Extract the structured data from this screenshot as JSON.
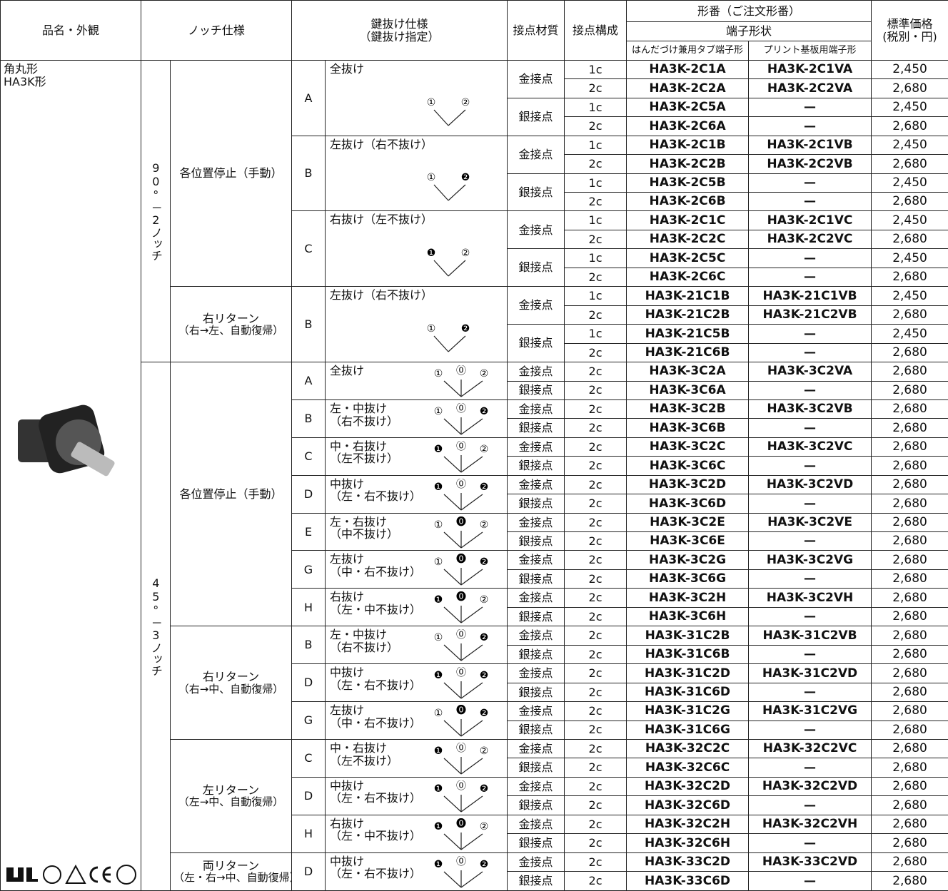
{
  "header": {
    "product": "品名・外観",
    "notch": "ノッチ仕様",
    "key": [
      "鍵抜け仕様",
      "（鍵抜け指定）"
    ],
    "material": "接点材質",
    "config": "接点構成",
    "model": "形番（ご注文形番）",
    "terminal": "端子形状",
    "tab": "はんだづけ兼用タブ端子形",
    "pcb": "プリント基板用端子形",
    "price": [
      "標準価格",
      "(税別・円)"
    ]
  },
  "product": [
    "角丸形",
    "HA3K形"
  ],
  "sections": [
    {
      "angle": "90°－2ノッチ",
      "groups": [
        {
          "notch": [
            "各位置停止（手動）"
          ],
          "keys": [
            {
              "letter": "A",
              "spec": [
                "全抜け"
              ],
              "positions": [
                "①",
                "②"
              ],
              "materials": [
                {
                  "name": "金接点",
                  "rows": [
                    [
                      "1c",
                      "HA3K-2C1A",
                      "HA3K-2C1VA",
                      "2,450"
                    ],
                    [
                      "2c",
                      "HA3K-2C2A",
                      "HA3K-2C2VA",
                      "2,680"
                    ]
                  ]
                },
                {
                  "name": "銀接点",
                  "rows": [
                    [
                      "1c",
                      "HA3K-2C5A",
                      "—",
                      "2,450"
                    ],
                    [
                      "2c",
                      "HA3K-2C6A",
                      "—",
                      "2,680"
                    ]
                  ]
                }
              ]
            },
            {
              "letter": "B",
              "spec": [
                "左抜け（右不抜け）"
              ],
              "positions": [
                "①",
                "❷"
              ],
              "materials": [
                {
                  "name": "金接点",
                  "rows": [
                    [
                      "1c",
                      "HA3K-2C1B",
                      "HA3K-2C1VB",
                      "2,450"
                    ],
                    [
                      "2c",
                      "HA3K-2C2B",
                      "HA3K-2C2VB",
                      "2,680"
                    ]
                  ]
                },
                {
                  "name": "銀接点",
                  "rows": [
                    [
                      "1c",
                      "HA3K-2C5B",
                      "—",
                      "2,450"
                    ],
                    [
                      "2c",
                      "HA3K-2C6B",
                      "—",
                      "2,680"
                    ]
                  ]
                }
              ]
            },
            {
              "letter": "C",
              "spec": [
                "右抜け（左不抜け）"
              ],
              "positions": [
                "❶",
                "②"
              ],
              "materials": [
                {
                  "name": "金接点",
                  "rows": [
                    [
                      "1c",
                      "HA3K-2C1C",
                      "HA3K-2C1VC",
                      "2,450"
                    ],
                    [
                      "2c",
                      "HA3K-2C2C",
                      "HA3K-2C2VC",
                      "2,680"
                    ]
                  ]
                },
                {
                  "name": "銀接点",
                  "rows": [
                    [
                      "1c",
                      "HA3K-2C5C",
                      "—",
                      "2,450"
                    ],
                    [
                      "2c",
                      "HA3K-2C6C",
                      "—",
                      "2,680"
                    ]
                  ]
                }
              ]
            }
          ]
        },
        {
          "notch": [
            "右リターン",
            "（右→左、自動復帰）"
          ],
          "keys": [
            {
              "letter": "B",
              "spec": [
                "左抜け（右不抜け）"
              ],
              "positions": [
                "①",
                "❷"
              ],
              "materials": [
                {
                  "name": "金接点",
                  "rows": [
                    [
                      "1c",
                      "HA3K-21C1B",
                      "HA3K-21C1VB",
                      "2,450"
                    ],
                    [
                      "2c",
                      "HA3K-21C2B",
                      "HA3K-21C2VB",
                      "2,680"
                    ]
                  ]
                },
                {
                  "name": "銀接点",
                  "rows": [
                    [
                      "1c",
                      "HA3K-21C5B",
                      "—",
                      "2,450"
                    ],
                    [
                      "2c",
                      "HA3K-21C6B",
                      "—",
                      "2,680"
                    ]
                  ]
                }
              ]
            }
          ]
        }
      ]
    },
    {
      "angle": "45°－3ノッチ",
      "groups": [
        {
          "notch": [
            "各位置停止（手動）"
          ],
          "keys": [
            {
              "letter": "A",
              "spec": [
                "全抜け"
              ],
              "positions": [
                "①",
                "⓪",
                "②"
              ],
              "materials": [
                {
                  "name": "金接点",
                  "rows": [
                    [
                      "2c",
                      "HA3K-3C2A",
                      "HA3K-3C2VA",
                      "2,680"
                    ]
                  ]
                },
                {
                  "name": "銀接点",
                  "rows": [
                    [
                      "2c",
                      "HA3K-3C6A",
                      "—",
                      "2,680"
                    ]
                  ]
                }
              ]
            },
            {
              "letter": "B",
              "spec": [
                "左・中抜け",
                "（右不抜け）"
              ],
              "positions": [
                "①",
                "⓪",
                "❷"
              ],
              "materials": [
                {
                  "name": "金接点",
                  "rows": [
                    [
                      "2c",
                      "HA3K-3C2B",
                      "HA3K-3C2VB",
                      "2,680"
                    ]
                  ]
                },
                {
                  "name": "銀接点",
                  "rows": [
                    [
                      "2c",
                      "HA3K-3C6B",
                      "—",
                      "2,680"
                    ]
                  ]
                }
              ]
            },
            {
              "letter": "C",
              "spec": [
                "中・右抜け",
                "（左不抜け）"
              ],
              "positions": [
                "❶",
                "⓪",
                "②"
              ],
              "materials": [
                {
                  "name": "金接点",
                  "rows": [
                    [
                      "2c",
                      "HA3K-3C2C",
                      "HA3K-3C2VC",
                      "2,680"
                    ]
                  ]
                },
                {
                  "name": "銀接点",
                  "rows": [
                    [
                      "2c",
                      "HA3K-3C6C",
                      "—",
                      "2,680"
                    ]
                  ]
                }
              ]
            },
            {
              "letter": "D",
              "spec": [
                "中抜け",
                "（左・右不抜け）"
              ],
              "positions": [
                "❶",
                "⓪",
                "❷"
              ],
              "materials": [
                {
                  "name": "金接点",
                  "rows": [
                    [
                      "2c",
                      "HA3K-3C2D",
                      "HA3K-3C2VD",
                      "2,680"
                    ]
                  ]
                },
                {
                  "name": "銀接点",
                  "rows": [
                    [
                      "2c",
                      "HA3K-3C6D",
                      "—",
                      "2,680"
                    ]
                  ]
                }
              ]
            },
            {
              "letter": "E",
              "spec": [
                "左・右抜け",
                "（中不抜け）"
              ],
              "positions": [
                "①",
                "⓿",
                "②"
              ],
              "materials": [
                {
                  "name": "金接点",
                  "rows": [
                    [
                      "2c",
                      "HA3K-3C2E",
                      "HA3K-3C2VE",
                      "2,680"
                    ]
                  ]
                },
                {
                  "name": "銀接点",
                  "rows": [
                    [
                      "2c",
                      "HA3K-3C6E",
                      "—",
                      "2,680"
                    ]
                  ]
                }
              ]
            },
            {
              "letter": "G",
              "spec": [
                "左抜け",
                "（中・右不抜け）"
              ],
              "positions": [
                "①",
                "⓿",
                "❷"
              ],
              "materials": [
                {
                  "name": "金接点",
                  "rows": [
                    [
                      "2c",
                      "HA3K-3C2G",
                      "HA3K-3C2VG",
                      "2,680"
                    ]
                  ]
                },
                {
                  "name": "銀接点",
                  "rows": [
                    [
                      "2c",
                      "HA3K-3C6G",
                      "—",
                      "2,680"
                    ]
                  ]
                }
              ]
            },
            {
              "letter": "H",
              "spec": [
                "右抜け",
                "（左・中不抜け）"
              ],
              "positions": [
                "❶",
                "⓿",
                "②"
              ],
              "materials": [
                {
                  "name": "金接点",
                  "rows": [
                    [
                      "2c",
                      "HA3K-3C2H",
                      "HA3K-3C2VH",
                      "2,680"
                    ]
                  ]
                },
                {
                  "name": "銀接点",
                  "rows": [
                    [
                      "2c",
                      "HA3K-3C6H",
                      "—",
                      "2,680"
                    ]
                  ]
                }
              ]
            }
          ]
        },
        {
          "notch": [
            "右リターン",
            "（右→中、自動復帰）"
          ],
          "keys": [
            {
              "letter": "B",
              "spec": [
                "左・中抜け",
                "（右不抜け）"
              ],
              "positions": [
                "①",
                "⓪",
                "❷"
              ],
              "materials": [
                {
                  "name": "金接点",
                  "rows": [
                    [
                      "2c",
                      "HA3K-31C2B",
                      "HA3K-31C2VB",
                      "2,680"
                    ]
                  ]
                },
                {
                  "name": "銀接点",
                  "rows": [
                    [
                      "2c",
                      "HA3K-31C6B",
                      "—",
                      "2,680"
                    ]
                  ]
                }
              ]
            },
            {
              "letter": "D",
              "spec": [
                "中抜け",
                "（左・右不抜け）"
              ],
              "positions": [
                "❶",
                "⓪",
                "❷"
              ],
              "materials": [
                {
                  "name": "金接点",
                  "rows": [
                    [
                      "2c",
                      "HA3K-31C2D",
                      "HA3K-31C2VD",
                      "2,680"
                    ]
                  ]
                },
                {
                  "name": "銀接点",
                  "rows": [
                    [
                      "2c",
                      "HA3K-31C6D",
                      "—",
                      "2,680"
                    ]
                  ]
                }
              ]
            },
            {
              "letter": "G",
              "spec": [
                "左抜け",
                "（中・右不抜け）"
              ],
              "positions": [
                "①",
                "⓿",
                "❷"
              ],
              "materials": [
                {
                  "name": "金接点",
                  "rows": [
                    [
                      "2c",
                      "HA3K-31C2G",
                      "HA3K-31C2VG",
                      "2,680"
                    ]
                  ]
                },
                {
                  "name": "銀接点",
                  "rows": [
                    [
                      "2c",
                      "HA3K-31C6G",
                      "—",
                      "2,680"
                    ]
                  ]
                }
              ]
            }
          ]
        },
        {
          "notch": [
            "左リターン",
            "（左→中、自動復帰）"
          ],
          "keys": [
            {
              "letter": "C",
              "spec": [
                "中・右抜け",
                "（左不抜け）"
              ],
              "positions": [
                "❶",
                "⓪",
                "②"
              ],
              "materials": [
                {
                  "name": "金接点",
                  "rows": [
                    [
                      "2c",
                      "HA3K-32C2C",
                      "HA3K-32C2VC",
                      "2,680"
                    ]
                  ]
                },
                {
                  "name": "銀接点",
                  "rows": [
                    [
                      "2c",
                      "HA3K-32C6C",
                      "—",
                      "2,680"
                    ]
                  ]
                }
              ]
            },
            {
              "letter": "D",
              "spec": [
                "中抜け",
                "（左・右不抜け）"
              ],
              "positions": [
                "❶",
                "⓪",
                "❷"
              ],
              "materials": [
                {
                  "name": "金接点",
                  "rows": [
                    [
                      "2c",
                      "HA3K-32C2D",
                      "HA3K-32C2VD",
                      "2,680"
                    ]
                  ]
                },
                {
                  "name": "銀接点",
                  "rows": [
                    [
                      "2c",
                      "HA3K-32C6D",
                      "—",
                      "2,680"
                    ]
                  ]
                }
              ]
            },
            {
              "letter": "H",
              "spec": [
                "右抜け",
                "（左・中不抜け）"
              ],
              "positions": [
                "❶",
                "⓿",
                "②"
              ],
              "materials": [
                {
                  "name": "金接点",
                  "rows": [
                    [
                      "2c",
                      "HA3K-32C2H",
                      "HA3K-32C2VH",
                      "2,680"
                    ]
                  ]
                },
                {
                  "name": "銀接点",
                  "rows": [
                    [
                      "2c",
                      "HA3K-32C6H",
                      "—",
                      "2,680"
                    ]
                  ]
                }
              ]
            }
          ]
        },
        {
          "notch": [
            "両リターン",
            "（左・右→中、自動復帰）"
          ],
          "keys": [
            {
              "letter": "D",
              "spec": [
                "中抜け",
                "（左・右不抜け）"
              ],
              "positions": [
                "❶",
                "⓪",
                "❷"
              ],
              "materials": [
                {
                  "name": "金接点",
                  "rows": [
                    [
                      "2c",
                      "HA3K-33C2D",
                      "HA3K-33C2VD",
                      "2,680"
                    ]
                  ]
                },
                {
                  "name": "銀接点",
                  "rows": [
                    [
                      "2c",
                      "HA3K-33C6D",
                      "—",
                      "2,680"
                    ]
                  ]
                }
              ]
            }
          ]
        }
      ]
    }
  ]
}
